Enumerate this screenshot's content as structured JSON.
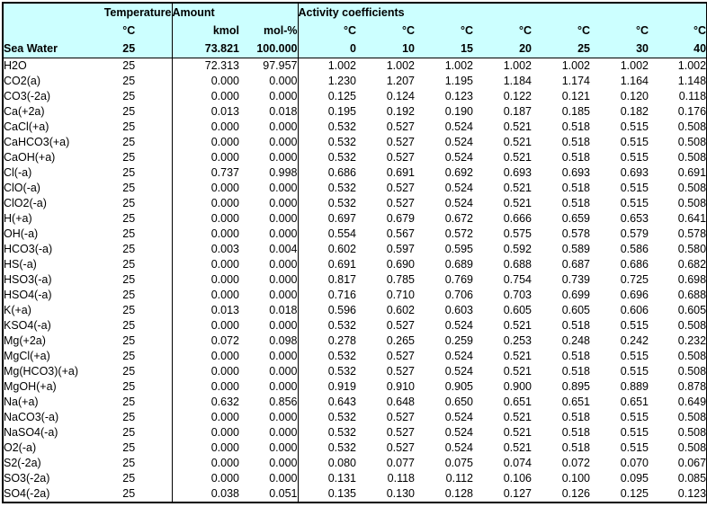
{
  "colors": {
    "header_bg": "#CCFFFF",
    "border": "#000000",
    "text": "#000000",
    "background": "#FFFFFF"
  },
  "table": {
    "header": {
      "temperature_label": "Temperature",
      "amount_label": "Amount",
      "activity_label": "Activity coefficients",
      "temp_unit": "°C",
      "kmol_label": "kmol",
      "molpct_label": "mol-%",
      "activity_unit": "°C",
      "stream_name": "Sea Water",
      "stream_temp": "25",
      "stream_kmol": "73.821",
      "stream_molpct": "100.000",
      "activity_temps": [
        "0",
        "10",
        "15",
        "20",
        "25",
        "30",
        "40"
      ]
    },
    "rows": [
      {
        "species": "H2O",
        "temp": "25",
        "kmol": "72.313",
        "molpct": "97.957",
        "coeffs": [
          "1.002",
          "1.002",
          "1.002",
          "1.002",
          "1.002",
          "1.002",
          "1.002"
        ]
      },
      {
        "species": "CO2(a)",
        "temp": "25",
        "kmol": "0.000",
        "molpct": "0.000",
        "coeffs": [
          "1.230",
          "1.207",
          "1.195",
          "1.184",
          "1.174",
          "1.164",
          "1.148"
        ]
      },
      {
        "species": "CO3(-2a)",
        "temp": "25",
        "kmol": "0.000",
        "molpct": "0.000",
        "coeffs": [
          "0.125",
          "0.124",
          "0.123",
          "0.122",
          "0.121",
          "0.120",
          "0.118"
        ]
      },
      {
        "species": "Ca(+2a)",
        "temp": "25",
        "kmol": "0.013",
        "molpct": "0.018",
        "coeffs": [
          "0.195",
          "0.192",
          "0.190",
          "0.187",
          "0.185",
          "0.182",
          "0.176"
        ]
      },
      {
        "species": "CaCl(+a)",
        "temp": "25",
        "kmol": "0.000",
        "molpct": "0.000",
        "coeffs": [
          "0.532",
          "0.527",
          "0.524",
          "0.521",
          "0.518",
          "0.515",
          "0.508"
        ]
      },
      {
        "species": "CaHCO3(+a)",
        "temp": "25",
        "kmol": "0.000",
        "molpct": "0.000",
        "coeffs": [
          "0.532",
          "0.527",
          "0.524",
          "0.521",
          "0.518",
          "0.515",
          "0.508"
        ]
      },
      {
        "species": "CaOH(+a)",
        "temp": "25",
        "kmol": "0.000",
        "molpct": "0.000",
        "coeffs": [
          "0.532",
          "0.527",
          "0.524",
          "0.521",
          "0.518",
          "0.515",
          "0.508"
        ]
      },
      {
        "species": "Cl(-a)",
        "temp": "25",
        "kmol": "0.737",
        "molpct": "0.998",
        "coeffs": [
          "0.686",
          "0.691",
          "0.692",
          "0.693",
          "0.693",
          "0.693",
          "0.691"
        ]
      },
      {
        "species": "ClO(-a)",
        "temp": "25",
        "kmol": "0.000",
        "molpct": "0.000",
        "coeffs": [
          "0.532",
          "0.527",
          "0.524",
          "0.521",
          "0.518",
          "0.515",
          "0.508"
        ]
      },
      {
        "species": "ClO2(-a)",
        "temp": "25",
        "kmol": "0.000",
        "molpct": "0.000",
        "coeffs": [
          "0.532",
          "0.527",
          "0.524",
          "0.521",
          "0.518",
          "0.515",
          "0.508"
        ]
      },
      {
        "species": "H(+a)",
        "temp": "25",
        "kmol": "0.000",
        "molpct": "0.000",
        "coeffs": [
          "0.697",
          "0.679",
          "0.672",
          "0.666",
          "0.659",
          "0.653",
          "0.641"
        ]
      },
      {
        "species": "OH(-a)",
        "temp": "25",
        "kmol": "0.000",
        "molpct": "0.000",
        "coeffs": [
          "0.554",
          "0.567",
          "0.572",
          "0.575",
          "0.578",
          "0.579",
          "0.578"
        ]
      },
      {
        "species": "HCO3(-a)",
        "temp": "25",
        "kmol": "0.003",
        "molpct": "0.004",
        "coeffs": [
          "0.602",
          "0.597",
          "0.595",
          "0.592",
          "0.589",
          "0.586",
          "0.580"
        ]
      },
      {
        "species": "HS(-a)",
        "temp": "25",
        "kmol": "0.000",
        "molpct": "0.000",
        "coeffs": [
          "0.691",
          "0.690",
          "0.689",
          "0.688",
          "0.687",
          "0.686",
          "0.682"
        ]
      },
      {
        "species": "HSO3(-a)",
        "temp": "25",
        "kmol": "0.000",
        "molpct": "0.000",
        "coeffs": [
          "0.817",
          "0.785",
          "0.769",
          "0.754",
          "0.739",
          "0.725",
          "0.698"
        ]
      },
      {
        "species": "HSO4(-a)",
        "temp": "25",
        "kmol": "0.000",
        "molpct": "0.000",
        "coeffs": [
          "0.716",
          "0.710",
          "0.706",
          "0.703",
          "0.699",
          "0.696",
          "0.688"
        ]
      },
      {
        "species": "K(+a)",
        "temp": "25",
        "kmol": "0.013",
        "molpct": "0.018",
        "coeffs": [
          "0.596",
          "0.602",
          "0.603",
          "0.605",
          "0.605",
          "0.606",
          "0.605"
        ]
      },
      {
        "species": "KSO4(-a)",
        "temp": "25",
        "kmol": "0.000",
        "molpct": "0.000",
        "coeffs": [
          "0.532",
          "0.527",
          "0.524",
          "0.521",
          "0.518",
          "0.515",
          "0.508"
        ]
      },
      {
        "species": "Mg(+2a)",
        "temp": "25",
        "kmol": "0.072",
        "molpct": "0.098",
        "coeffs": [
          "0.278",
          "0.265",
          "0.259",
          "0.253",
          "0.248",
          "0.242",
          "0.232"
        ]
      },
      {
        "species": "MgCl(+a)",
        "temp": "25",
        "kmol": "0.000",
        "molpct": "0.000",
        "coeffs": [
          "0.532",
          "0.527",
          "0.524",
          "0.521",
          "0.518",
          "0.515",
          "0.508"
        ]
      },
      {
        "species": "Mg(HCO3)(+a)",
        "temp": "25",
        "kmol": "0.000",
        "molpct": "0.000",
        "coeffs": [
          "0.532",
          "0.527",
          "0.524",
          "0.521",
          "0.518",
          "0.515",
          "0.508"
        ]
      },
      {
        "species": "MgOH(+a)",
        "temp": "25",
        "kmol": "0.000",
        "molpct": "0.000",
        "coeffs": [
          "0.919",
          "0.910",
          "0.905",
          "0.900",
          "0.895",
          "0.889",
          "0.878"
        ]
      },
      {
        "species": "Na(+a)",
        "temp": "25",
        "kmol": "0.632",
        "molpct": "0.856",
        "coeffs": [
          "0.643",
          "0.648",
          "0.650",
          "0.651",
          "0.651",
          "0.651",
          "0.649"
        ]
      },
      {
        "species": "NaCO3(-a)",
        "temp": "25",
        "kmol": "0.000",
        "molpct": "0.000",
        "coeffs": [
          "0.532",
          "0.527",
          "0.524",
          "0.521",
          "0.518",
          "0.515",
          "0.508"
        ]
      },
      {
        "species": "NaSO4(-a)",
        "temp": "25",
        "kmol": "0.000",
        "molpct": "0.000",
        "coeffs": [
          "0.532",
          "0.527",
          "0.524",
          "0.521",
          "0.518",
          "0.515",
          "0.508"
        ]
      },
      {
        "species": "O2(-a)",
        "temp": "25",
        "kmol": "0.000",
        "molpct": "0.000",
        "coeffs": [
          "0.532",
          "0.527",
          "0.524",
          "0.521",
          "0.518",
          "0.515",
          "0.508"
        ]
      },
      {
        "species": "S2(-2a)",
        "temp": "25",
        "kmol": "0.000",
        "molpct": "0.000",
        "coeffs": [
          "0.080",
          "0.077",
          "0.075",
          "0.074",
          "0.072",
          "0.070",
          "0.067"
        ]
      },
      {
        "species": "SO3(-2a)",
        "temp": "25",
        "kmol": "0.000",
        "molpct": "0.000",
        "coeffs": [
          "0.131",
          "0.118",
          "0.112",
          "0.106",
          "0.100",
          "0.095",
          "0.085"
        ]
      },
      {
        "species": "SO4(-2a)",
        "temp": "25",
        "kmol": "0.038",
        "molpct": "0.051",
        "coeffs": [
          "0.135",
          "0.130",
          "0.128",
          "0.127",
          "0.126",
          "0.125",
          "0.123"
        ]
      }
    ]
  }
}
